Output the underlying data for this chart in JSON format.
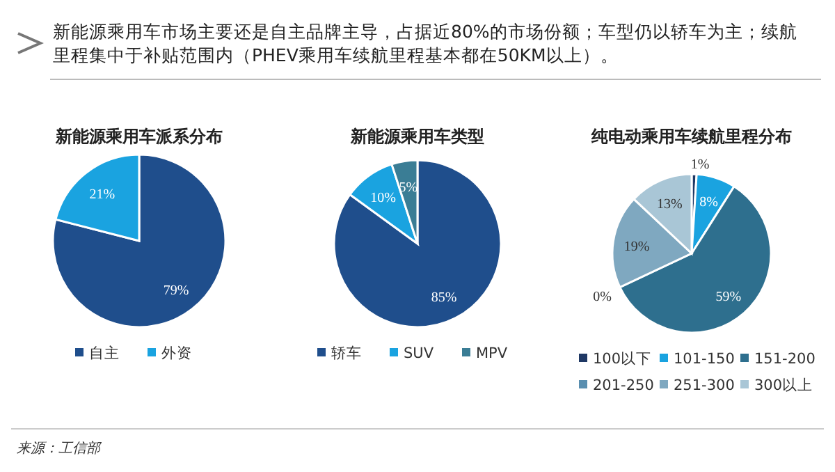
{
  "chart_data": [
    {
      "type": "pie",
      "title": "新能源乘用车派系分布",
      "categories": [
        "自主",
        "外资"
      ],
      "values": [
        79,
        21
      ],
      "colors": [
        "#1f4e8c",
        "#1aa3e0"
      ],
      "value_labels": [
        "79%",
        "21%"
      ],
      "legend": "bottom",
      "annotations": [
        "新能源乘用车市场主要还是自主品牌主导，占据近80%的市场份额；车型仍以轿车为主；续航里程集中于补贴范围内（PHEV乘用车续航里程基本都在50KM以上）。",
        "来源：工信部"
      ]
    },
    {
      "type": "pie",
      "title": "新能源乘用车类型",
      "categories": [
        "轿车",
        "SUV",
        "MPV"
      ],
      "values": [
        85,
        10,
        5
      ],
      "colors": [
        "#1f4e8c",
        "#1aa3e0",
        "#3a7d95"
      ],
      "value_labels": [
        "85%",
        "10%",
        "5%"
      ],
      "legend": "bottom"
    },
    {
      "type": "pie",
      "title": "纯电动乘用车续航里程分布",
      "categories": [
        "100以下",
        "101-150",
        "151-200",
        "201-250",
        "251-300",
        "300以上"
      ],
      "values": [
        1,
        8,
        59,
        0,
        19,
        13
      ],
      "colors": [
        "#1f3864",
        "#1aa3e0",
        "#2e6f8e",
        "#5a8fb0",
        "#7fa8c0",
        "#a9c6d6"
      ],
      "value_labels": [
        "1%",
        "8%",
        "59%",
        "0%",
        "19%",
        "13%"
      ],
      "legend": "bottom"
    }
  ]
}
